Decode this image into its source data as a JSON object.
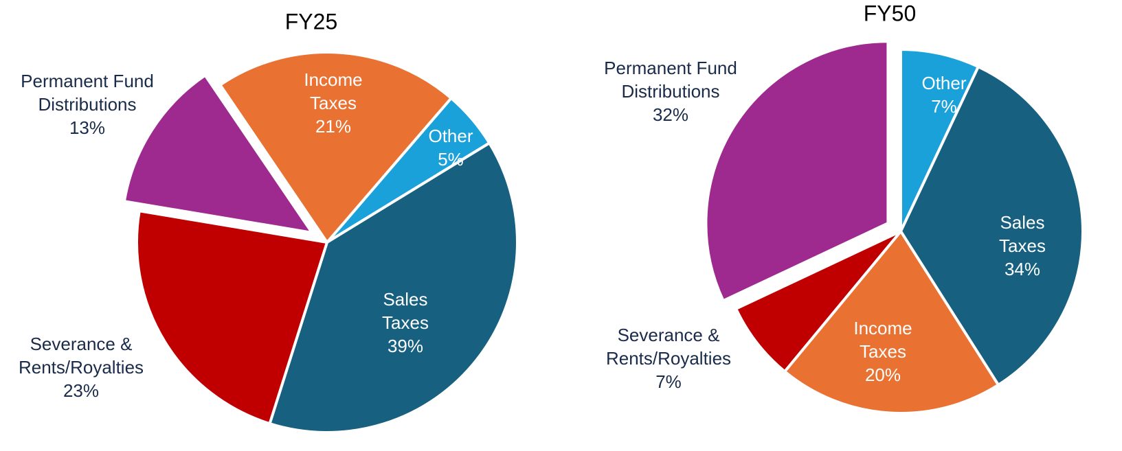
{
  "chart_data": [
    {
      "type": "pie",
      "title": "FY25",
      "categories": [
        "Other",
        "Sales Taxes",
        "Severance & Rents/Royalties",
        "Permanent Fund Distributions",
        "Income Taxes"
      ],
      "values": [
        5,
        39,
        23,
        13,
        21
      ],
      "value_labels": [
        "5%",
        "39%",
        "23%",
        "13%",
        "21%"
      ],
      "colors": [
        "#1ba1d9",
        "#17607f",
        "#c00000",
        "#9e2a8f",
        "#e97132"
      ],
      "explode": [
        0,
        0,
        0,
        1,
        0
      ]
    },
    {
      "type": "pie",
      "title": "FY50",
      "categories": [
        "Other",
        "Sales Taxes",
        "Income Taxes",
        "Severance & Rents/Royalties",
        "Permanent Fund Distributions"
      ],
      "values": [
        7,
        34,
        20,
        7,
        32
      ],
      "value_labels": [
        "7%",
        "34%",
        "20%",
        "7%",
        "32%"
      ],
      "colors": [
        "#1ba1d9",
        "#17607f",
        "#e97132",
        "#c00000",
        "#9e2a8f"
      ],
      "explode": [
        0,
        0,
        0,
        0,
        1
      ]
    }
  ]
}
